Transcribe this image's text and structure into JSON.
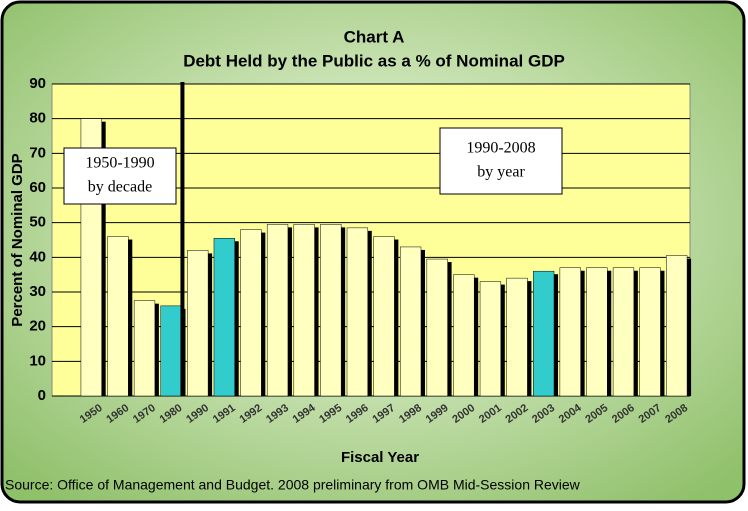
{
  "chart_data": {
    "type": "bar",
    "title": "Chart A",
    "subtitle": "Debt Held by the Public as a % of Nominal GDP",
    "y_label": "Percent of Nominal GDP",
    "x_label": "Fiscal Year",
    "source": "Source: Office of Management and Budget.  2008 preliminary from OMB Mid-Session Review",
    "annotations": [
      [
        "1950-1990",
        "by decade"
      ],
      [
        "1990-2008",
        "by year"
      ]
    ],
    "categories": [
      "1950",
      "1960",
      "1970",
      "1980",
      "1990",
      "1991",
      "1992",
      "1993",
      "1994",
      "1995",
      "1996",
      "1997",
      "1998",
      "1999",
      "2000",
      "2001",
      "2002",
      "2003",
      "2004",
      "2005",
      "2006",
      "2007",
      "2008"
    ],
    "values": [
      80,
      46,
      27.5,
      26,
      42,
      45.5,
      48,
      49.5,
      49.5,
      49.5,
      48.5,
      46,
      43,
      39.5,
      35,
      33,
      34,
      36,
      37,
      37,
      37,
      37,
      40.5
    ],
    "colors": [
      "#ffffc0",
      "#ffffc0",
      "#ffffc0",
      "#33cccc",
      "#ffffc0",
      "#33cccc",
      "#ffffc0",
      "#ffffc0",
      "#ffffc0",
      "#ffffc0",
      "#ffffc0",
      "#ffffc0",
      "#ffffc0",
      "#ffffc0",
      "#ffffc0",
      "#ffffc0",
      "#ffffc0",
      "#33cccc",
      "#ffffc0",
      "#ffffc0",
      "#ffffc0",
      "#ffffc0",
      "#ffffc0"
    ],
    "ylim": [
      0,
      90
    ],
    "yticks": [
      0,
      10,
      20,
      30,
      40,
      50,
      60,
      70,
      80,
      90
    ],
    "grid": true
  }
}
